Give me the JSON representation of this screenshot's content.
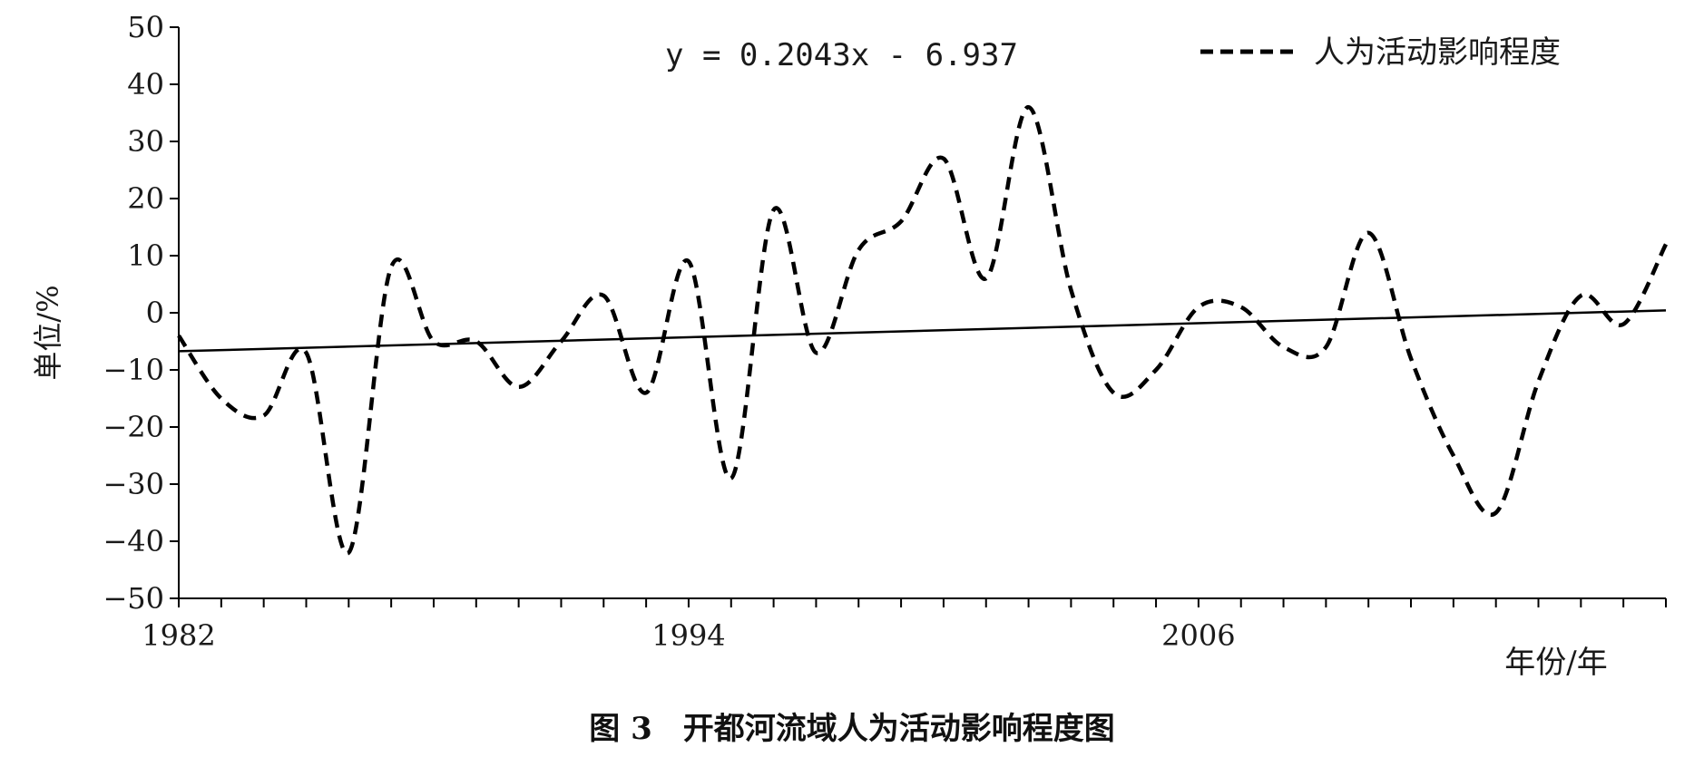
{
  "chart_data": {
    "type": "line",
    "title": "",
    "caption": "图 3　开都河流域人为活动影响程度图",
    "xlabel": "年份/年",
    "ylabel": "单位/%",
    "ylim": [
      -50,
      50
    ],
    "xlim": [
      1982,
      2017
    ],
    "y_ticks": [
      50,
      40,
      30,
      20,
      10,
      0,
      -10,
      -20,
      -30,
      -40,
      -50
    ],
    "x_tick_labels": [
      "1982",
      "1994",
      "2006"
    ],
    "x_tick_values": [
      1982,
      1994,
      2006
    ],
    "minor_tick_years": [
      1982,
      1983,
      1984,
      1985,
      1986,
      1987,
      1988,
      1989,
      1990,
      1991,
      1992,
      1993,
      1994,
      1995,
      1996,
      1997,
      1998,
      1999,
      2000,
      2001,
      2002,
      2003,
      2004,
      2005,
      2006,
      2007,
      2008,
      2009,
      2010,
      2011,
      2012,
      2013,
      2014,
      2015,
      2016,
      2017
    ],
    "grid": false,
    "legend_position": "top-right",
    "series": [
      {
        "name": "人为活动影响程度",
        "style": "dashed",
        "color": "#000000",
        "x": [
          1982,
          1983,
          1984,
          1985,
          1986,
          1987,
          1988,
          1989,
          1990,
          1991,
          1992,
          1993,
          1994,
          1995,
          1996,
          1997,
          1998,
          1999,
          2000,
          2001,
          2002,
          2003,
          2004,
          2005,
          2006,
          2007,
          2008,
          2009,
          2010,
          2011,
          2012,
          2013,
          2014,
          2015,
          2016,
          2017
        ],
        "y": [
          -4,
          -15,
          -18,
          -7,
          -42,
          8,
          -5,
          -5,
          -13,
          -5,
          3,
          -14,
          9,
          -29,
          18,
          -7,
          11,
          16,
          27,
          6,
          36,
          4,
          -14,
          -10,
          1,
          1,
          -6,
          -6,
          14,
          -8,
          -25,
          -35,
          -12,
          3,
          -2,
          12
        ]
      }
    ],
    "trendline": {
      "equation": "y = 0.2043x - 6.937",
      "slope": 0.2043,
      "intercept": -6.937,
      "x_start": 1982,
      "x_end": 2017
    }
  }
}
